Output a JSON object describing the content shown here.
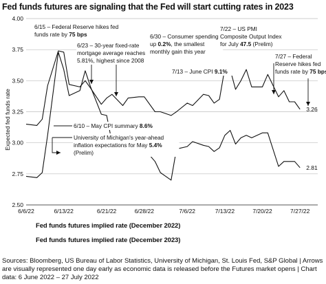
{
  "title": "Fed funds futures are signaling that the Fed will start cutting rates in 2023",
  "legend": [
    "Fed funds futures implied rate (December 2022)",
    "Fed funds futures implied rate (December 2023)"
  ],
  "source_lines": [
    "Sources: Bloomberg, US Bureau of Labor Statistics, University of Michigan, St. Louis Fed, S&P Global  |  Arrows",
    "are visually represented one day early as economic data is released before the Futures market opens  |  Chart",
    "data: 6 June 2022 – 27 July 2022"
  ],
  "chart_data": {
    "type": "line",
    "ylabel": "Expected fed funds rate",
    "ylim": [
      2.5,
      4.0
    ],
    "yticks": [
      2.5,
      2.75,
      3.0,
      3.25,
      3.5,
      3.75,
      4.0
    ],
    "ytick_labels": [
      "2.50",
      "2.75",
      "3.00",
      "3.25",
      "3.50",
      "3.75",
      "4.00"
    ],
    "xlim": [
      "2022-06-06",
      "2022-07-28"
    ],
    "xticks": [
      "2022-06-06",
      "2022-06-13",
      "2022-06-21",
      "2022-06-28",
      "2022-07-06",
      "2022-07-13",
      "2022-07-20",
      "2022-07-27"
    ],
    "xtick_labels": [
      "6/6/22",
      "6/13/22",
      "6/21/22",
      "6/28/22",
      "7/6/22",
      "7/13/22",
      "7/20/22",
      "7/27/22"
    ],
    "grid": "horizontal",
    "series": [
      {
        "color": "#111111",
        "end_label": "3.26",
        "points": [
          [
            "2022-06-06",
            3.15
          ],
          [
            "2022-06-08",
            3.14
          ],
          [
            "2022-06-09",
            3.19
          ],
          [
            "2022-06-10",
            3.46
          ],
          [
            "2022-06-12",
            3.74
          ],
          [
            "2022-06-13",
            3.73
          ],
          [
            "2022-06-14",
            3.47
          ],
          [
            "2022-06-16",
            3.45
          ],
          [
            "2022-06-17",
            3.5
          ],
          [
            "2022-06-18",
            3.44
          ],
          [
            "2022-06-20",
            3.31
          ],
          [
            "2022-06-21",
            3.36
          ],
          [
            "2022-06-22",
            3.39
          ],
          [
            "2022-06-24",
            3.3
          ],
          [
            "2022-06-25",
            3.36
          ],
          [
            "2022-06-27",
            3.37
          ],
          [
            "2022-06-28",
            3.37
          ],
          [
            "2022-06-30",
            3.25
          ],
          [
            "2022-07-01",
            3.25
          ],
          [
            "2022-07-03",
            3.22
          ],
          [
            "2022-07-04",
            3.25
          ],
          [
            "2022-07-06",
            3.32
          ],
          [
            "2022-07-07",
            3.3
          ],
          [
            "2022-07-09",
            3.39
          ],
          [
            "2022-07-10",
            3.38
          ],
          [
            "2022-07-11",
            3.32
          ],
          [
            "2022-07-12",
            3.35
          ],
          [
            "2022-07-13",
            3.6
          ],
          [
            "2022-07-14",
            3.59
          ],
          [
            "2022-07-15",
            3.43
          ],
          [
            "2022-07-16",
            3.5
          ],
          [
            "2022-07-17",
            3.59
          ],
          [
            "2022-07-18",
            3.45
          ],
          [
            "2022-07-20",
            3.45
          ],
          [
            "2022-07-21",
            3.55
          ],
          [
            "2022-07-23",
            3.37
          ],
          [
            "2022-07-24",
            3.42
          ],
          [
            "2022-07-25",
            3.33
          ],
          [
            "2022-07-26",
            3.33
          ],
          [
            "2022-07-27",
            3.27
          ]
        ]
      },
      {
        "color": "#111111",
        "end_label": "2.81",
        "points": [
          [
            "2022-06-06",
            2.73
          ],
          [
            "2022-06-08",
            2.72
          ],
          [
            "2022-06-09",
            2.76
          ],
          [
            "2022-06-10",
            3.06
          ],
          [
            "2022-06-12",
            3.73
          ],
          [
            "2022-06-13",
            3.59
          ],
          [
            "2022-06-14",
            3.38
          ],
          [
            "2022-06-16",
            3.42
          ],
          [
            "2022-06-17",
            3.58
          ],
          [
            "2022-06-18",
            3.45
          ],
          [
            "2022-06-20",
            3.23
          ],
          [
            "2022-06-21",
            3.22
          ],
          [
            "2022-06-22",
            3.0
          ],
          [
            "2022-06-24",
            2.98
          ],
          [
            "2022-06-25",
            3.02
          ],
          [
            "2022-06-27",
            2.99
          ],
          [
            "2022-06-28",
            2.95
          ],
          [
            "2022-06-30",
            2.85
          ],
          [
            "2022-07-01",
            2.76
          ],
          [
            "2022-07-03",
            2.7
          ],
          [
            "2022-07-04",
            2.95
          ],
          [
            "2022-07-06",
            2.97
          ],
          [
            "2022-07-07",
            3.01
          ],
          [
            "2022-07-09",
            2.98
          ],
          [
            "2022-07-10",
            2.97
          ],
          [
            "2022-07-11",
            2.93
          ],
          [
            "2022-07-12",
            2.96
          ],
          [
            "2022-07-13",
            3.06
          ],
          [
            "2022-07-14",
            3.1
          ],
          [
            "2022-07-15",
            2.99
          ],
          [
            "2022-07-16",
            3.04
          ],
          [
            "2022-07-17",
            3.06
          ],
          [
            "2022-07-18",
            3.04
          ],
          [
            "2022-07-20",
            3.08
          ],
          [
            "2022-07-21",
            3.08
          ],
          [
            "2022-07-23",
            2.81
          ],
          [
            "2022-07-24",
            2.85
          ],
          [
            "2022-07-25",
            2.85
          ],
          [
            "2022-07-26",
            2.85
          ],
          [
            "2022-07-27",
            2.8
          ]
        ]
      }
    ],
    "annotations": [
      {
        "date": "2022-06-15",
        "lines": [
          [
            [
              "6/15 – Federal Reserve hikes fed",
              false
            ]
          ],
          [
            [
              "funds rate by ",
              false
            ],
            [
              "75 bps",
              true
            ]
          ]
        ]
      },
      {
        "date": "2022-06-23",
        "lines": [
          [
            [
              "6/23 – 30-year fixed-rate",
              false
            ]
          ],
          [
            [
              "mortgage average reaches",
              false
            ]
          ],
          [
            [
              "5.81%, highest since 2008",
              false
            ]
          ]
        ]
      },
      {
        "date": "2022-06-30",
        "lines": [
          [
            [
              "6/30 – Consumer spending",
              false
            ]
          ],
          [
            [
              "up ",
              false
            ],
            [
              "0.2%",
              true
            ],
            [
              ", the smallest",
              false
            ]
          ],
          [
            [
              "monthly gain this year",
              false
            ]
          ]
        ]
      },
      {
        "date": "2022-07-22",
        "lines": [
          [
            [
              "7/22 – US PMI",
              false
            ]
          ],
          [
            [
              "Composite Output Index",
              false
            ]
          ],
          [
            [
              "for July ",
              false
            ],
            [
              "47.5",
              true
            ],
            [
              " (Prelim)",
              false
            ]
          ]
        ]
      },
      {
        "date": "2022-07-27",
        "lines": [
          [
            [
              "7/27 – Federal",
              false
            ]
          ],
          [
            [
              "Reserve hikes fed",
              false
            ]
          ],
          [
            [
              "funds rate by ",
              false
            ],
            [
              "75 bps",
              true
            ]
          ]
        ]
      },
      {
        "date": "2022-07-13",
        "lines": [
          [
            [
              "7/13 – June CPI ",
              false
            ],
            [
              "9.1%",
              true
            ]
          ]
        ]
      },
      {
        "date": "2022-06-10",
        "lines": [
          [
            [
              "6/10 – May CPI summary ",
              false
            ],
            [
              "8.6%",
              true
            ]
          ]
        ]
      },
      {
        "date": "2022-06-24",
        "lines": [
          [
            [
              "University of Michigan's year-ahead",
              false
            ]
          ],
          [
            [
              "inflation expectations for May ",
              false
            ],
            [
              "5.4%",
              true
            ]
          ],
          [
            [
              "(Prelim)",
              false
            ]
          ]
        ]
      }
    ]
  }
}
